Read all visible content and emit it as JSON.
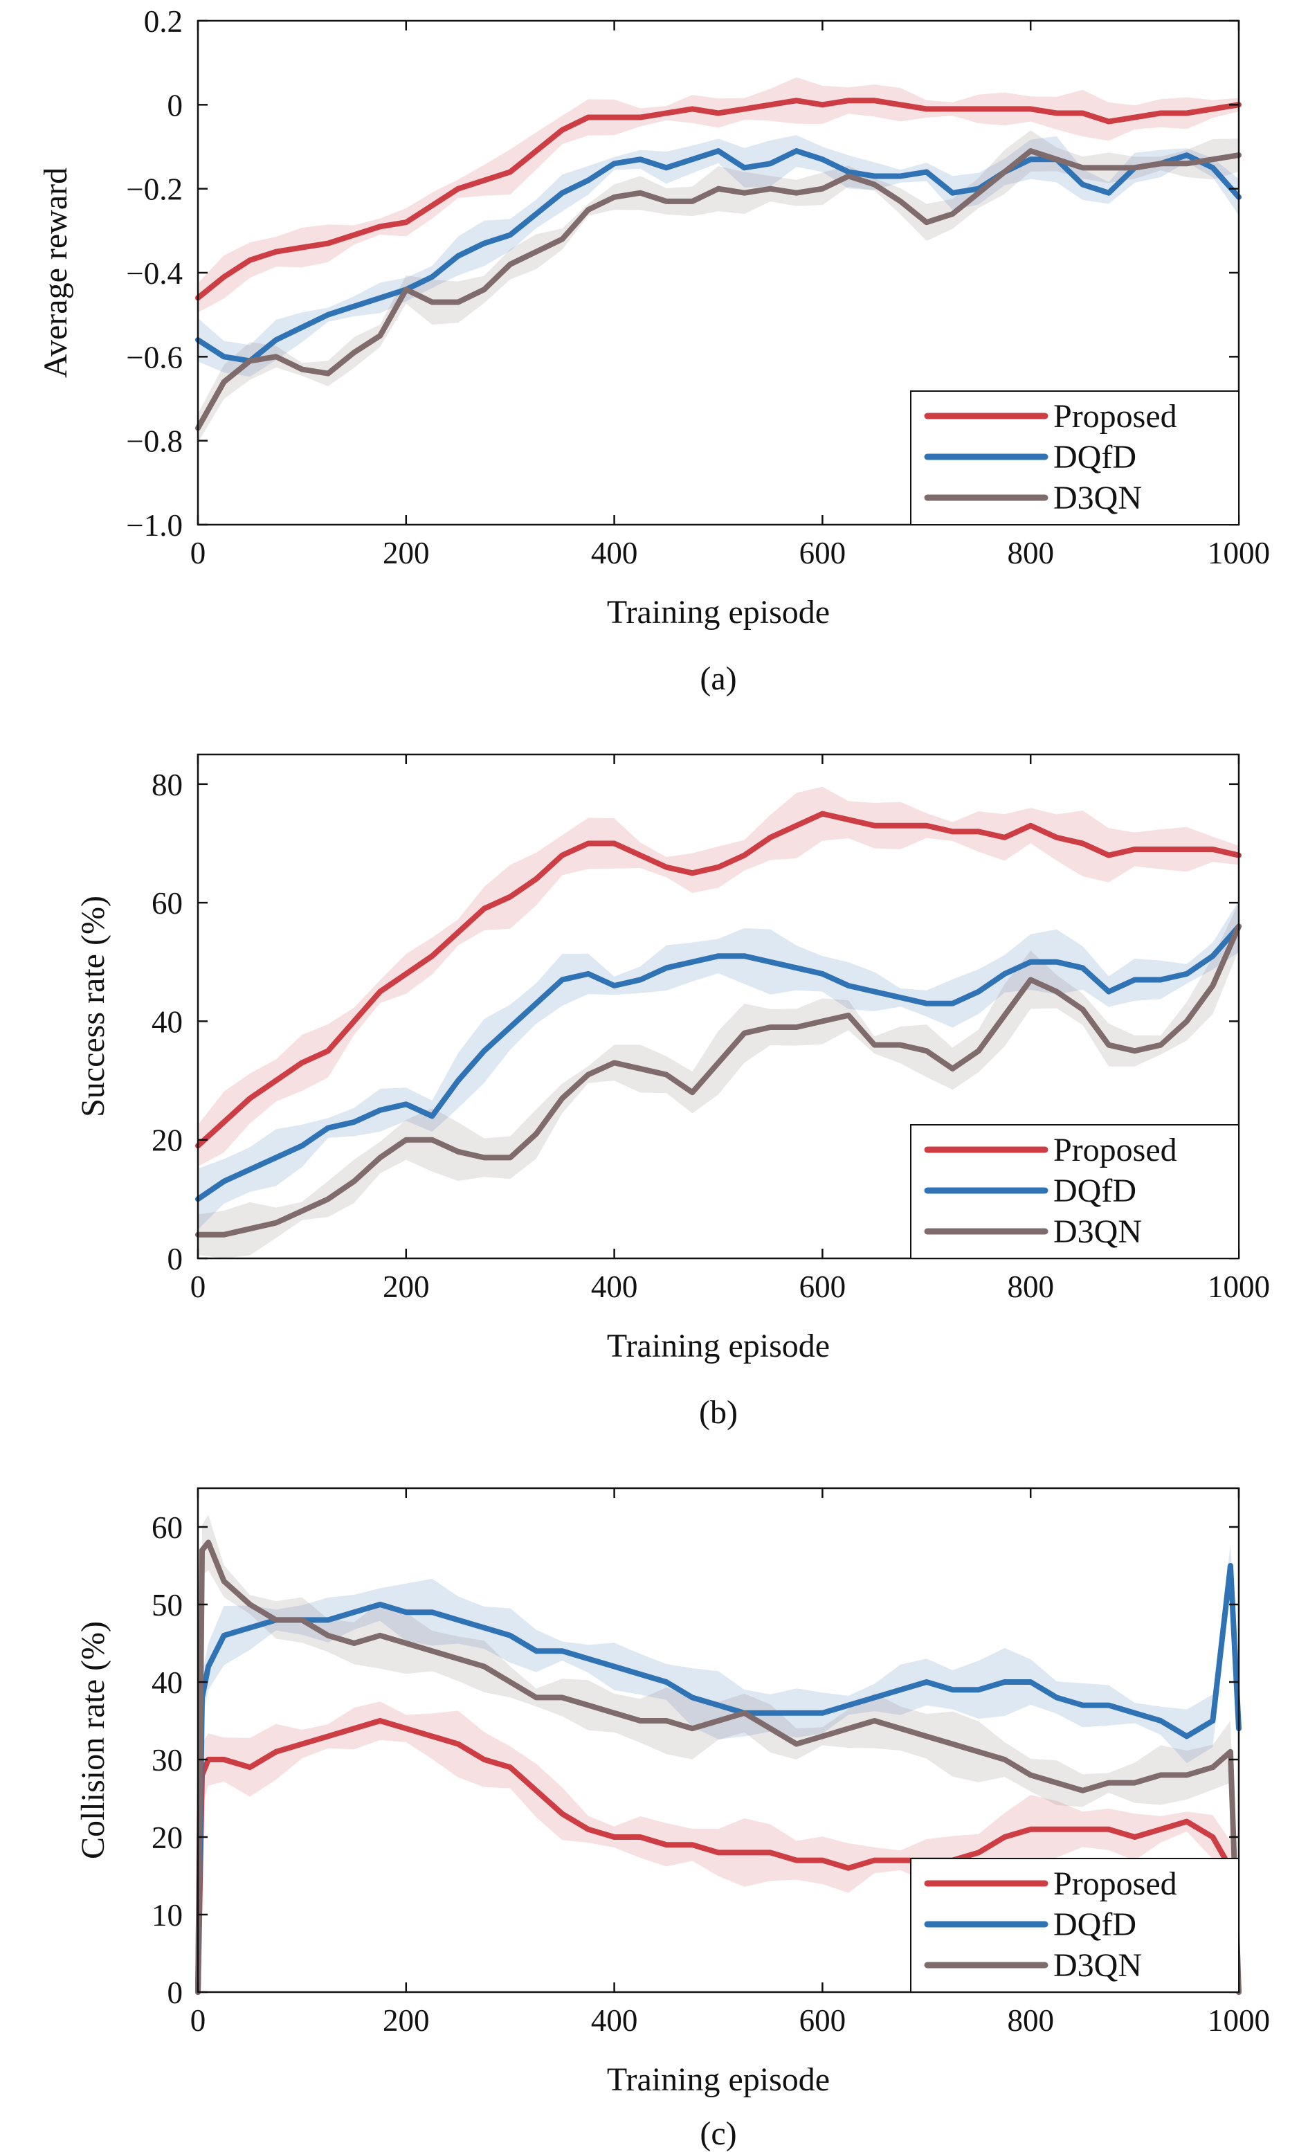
{
  "colors": {
    "proposed": "#cc3d44",
    "dqfd": "#2f73b5",
    "d3qn": "#7f6b6b",
    "axis": "#111111"
  },
  "chart_data": [
    {
      "type": "line",
      "caption": "(a)",
      "xlabel": "Training episode",
      "ylabel": "Average reward",
      "xlim": [
        0,
        1000
      ],
      "ylim": [
        -1.0,
        0.2
      ],
      "xticks": [
        0,
        200,
        400,
        600,
        800,
        1000
      ],
      "xtick_labels": [
        "0",
        "200",
        "400",
        "600",
        "800",
        "1000"
      ],
      "yticks": [
        -1.0,
        -0.8,
        -0.6,
        -0.4,
        -0.2,
        0,
        0.2
      ],
      "ytick_labels": [
        "−1.0",
        "−0.8",
        "−0.6",
        "−0.4",
        "−0.2",
        "0",
        "0.2"
      ],
      "legend": "bottom-right",
      "grid": false,
      "series": [
        {
          "name": "Proposed",
          "color_key": "proposed",
          "x": [
            0,
            25,
            50,
            75,
            100,
            125,
            150,
            175,
            200,
            225,
            250,
            275,
            300,
            325,
            350,
            375,
            400,
            425,
            450,
            475,
            500,
            525,
            550,
            575,
            600,
            625,
            650,
            675,
            700,
            725,
            750,
            775,
            800,
            825,
            850,
            875,
            900,
            925,
            950,
            975,
            1000
          ],
          "y": [
            -0.46,
            -0.41,
            -0.37,
            -0.35,
            -0.34,
            -0.33,
            -0.31,
            -0.29,
            -0.28,
            -0.24,
            -0.2,
            -0.18,
            -0.16,
            -0.11,
            -0.06,
            -0.03,
            -0.03,
            -0.03,
            -0.02,
            -0.01,
            -0.02,
            -0.01,
            0,
            0.01,
            0,
            0.01,
            0.01,
            0,
            -0.01,
            -0.01,
            -0.01,
            -0.01,
            -0.01,
            -0.02,
            -0.02,
            -0.04,
            -0.03,
            -0.02,
            -0.02,
            -0.01,
            0
          ]
        },
        {
          "name": "DQfD",
          "color_key": "dqfd",
          "x": [
            0,
            25,
            50,
            75,
            100,
            125,
            150,
            175,
            200,
            225,
            250,
            275,
            300,
            325,
            350,
            375,
            400,
            425,
            450,
            475,
            500,
            525,
            550,
            575,
            600,
            625,
            650,
            675,
            700,
            725,
            750,
            775,
            800,
            825,
            850,
            875,
            900,
            925,
            950,
            975,
            1000
          ],
          "y": [
            -0.56,
            -0.6,
            -0.61,
            -0.56,
            -0.53,
            -0.5,
            -0.48,
            -0.46,
            -0.44,
            -0.41,
            -0.36,
            -0.33,
            -0.31,
            -0.26,
            -0.21,
            -0.18,
            -0.14,
            -0.13,
            -0.15,
            -0.13,
            -0.11,
            -0.15,
            -0.14,
            -0.11,
            -0.13,
            -0.16,
            -0.17,
            -0.17,
            -0.16,
            -0.21,
            -0.2,
            -0.16,
            -0.13,
            -0.13,
            -0.19,
            -0.21,
            -0.15,
            -0.14,
            -0.12,
            -0.15,
            -0.22
          ]
        },
        {
          "name": "D3QN",
          "color_key": "d3qn",
          "x": [
            0,
            25,
            50,
            75,
            100,
            125,
            150,
            175,
            200,
            225,
            250,
            275,
            300,
            325,
            350,
            375,
            400,
            425,
            450,
            475,
            500,
            525,
            550,
            575,
            600,
            625,
            650,
            675,
            700,
            725,
            750,
            775,
            800,
            825,
            850,
            875,
            900,
            925,
            950,
            975,
            1000
          ],
          "y": [
            -0.77,
            -0.66,
            -0.61,
            -0.6,
            -0.63,
            -0.64,
            -0.59,
            -0.55,
            -0.44,
            -0.47,
            -0.47,
            -0.44,
            -0.38,
            -0.35,
            -0.32,
            -0.25,
            -0.22,
            -0.21,
            -0.23,
            -0.23,
            -0.2,
            -0.21,
            -0.2,
            -0.21,
            -0.2,
            -0.17,
            -0.19,
            -0.23,
            -0.28,
            -0.26,
            -0.21,
            -0.16,
            -0.11,
            -0.13,
            -0.15,
            -0.15,
            -0.15,
            -0.14,
            -0.14,
            -0.13,
            -0.12
          ]
        }
      ]
    },
    {
      "type": "line",
      "caption": "(b)",
      "xlabel": "Training episode",
      "ylabel": "Success rate (%)",
      "xlim": [
        0,
        1000
      ],
      "ylim": [
        0,
        85
      ],
      "xticks": [
        0,
        200,
        400,
        600,
        800,
        1000
      ],
      "xtick_labels": [
        "0",
        "200",
        "400",
        "600",
        "800",
        "1000"
      ],
      "yticks": [
        0,
        20,
        40,
        60,
        80
      ],
      "ytick_labels": [
        "0",
        "20",
        "40",
        "60",
        "80"
      ],
      "legend": "bottom-right",
      "grid": false,
      "series": [
        {
          "name": "Proposed",
          "color_key": "proposed",
          "x": [
            0,
            25,
            50,
            75,
            100,
            125,
            150,
            175,
            200,
            225,
            250,
            275,
            300,
            325,
            350,
            375,
            400,
            425,
            450,
            475,
            500,
            525,
            550,
            575,
            600,
            625,
            650,
            675,
            700,
            725,
            750,
            775,
            800,
            825,
            850,
            875,
            900,
            925,
            950,
            975,
            1000
          ],
          "y": [
            19,
            23,
            27,
            30,
            33,
            35,
            40,
            45,
            48,
            51,
            55,
            59,
            61,
            64,
            68,
            70,
            70,
            68,
            66,
            65,
            66,
            68,
            71,
            73,
            75,
            74,
            73,
            73,
            73,
            72,
            72,
            71,
            73,
            71,
            70,
            68,
            69,
            69,
            69,
            69,
            68
          ]
        },
        {
          "name": "DQfD",
          "color_key": "dqfd",
          "x": [
            0,
            25,
            50,
            75,
            100,
            125,
            150,
            175,
            200,
            225,
            250,
            275,
            300,
            325,
            350,
            375,
            400,
            425,
            450,
            475,
            500,
            525,
            550,
            575,
            600,
            625,
            650,
            675,
            700,
            725,
            750,
            775,
            800,
            825,
            850,
            875,
            900,
            925,
            950,
            975,
            1000
          ],
          "y": [
            10,
            13,
            15,
            17,
            19,
            22,
            23,
            25,
            26,
            24,
            30,
            35,
            39,
            43,
            47,
            48,
            46,
            47,
            49,
            50,
            51,
            51,
            50,
            49,
            48,
            46,
            45,
            44,
            43,
            43,
            45,
            48,
            50,
            50,
            49,
            45,
            47,
            47,
            48,
            51,
            56
          ]
        },
        {
          "name": "D3QN",
          "color_key": "d3qn",
          "x": [
            0,
            25,
            50,
            75,
            100,
            125,
            150,
            175,
            200,
            225,
            250,
            275,
            300,
            325,
            350,
            375,
            400,
            425,
            450,
            475,
            500,
            525,
            550,
            575,
            600,
            625,
            650,
            675,
            700,
            725,
            750,
            775,
            800,
            825,
            850,
            875,
            900,
            925,
            950,
            975,
            1000
          ],
          "y": [
            4,
            4,
            5,
            6,
            8,
            10,
            13,
            17,
            20,
            20,
            18,
            17,
            17,
            21,
            27,
            31,
            33,
            32,
            31,
            28,
            33,
            38,
            39,
            39,
            40,
            41,
            36,
            36,
            35,
            32,
            35,
            41,
            47,
            45,
            42,
            36,
            35,
            36,
            40,
            46,
            56
          ]
        }
      ]
    },
    {
      "type": "line",
      "caption": "(c)",
      "xlabel": "Training episode",
      "ylabel": "Collision rate (%)",
      "xlim": [
        0,
        1000
      ],
      "ylim": [
        0,
        65
      ],
      "xticks": [
        0,
        200,
        400,
        600,
        800,
        1000
      ],
      "xtick_labels": [
        "0",
        "200",
        "400",
        "600",
        "800",
        "1000"
      ],
      "yticks": [
        0,
        10,
        20,
        30,
        40,
        50,
        60
      ],
      "ytick_labels": [
        "0",
        "10",
        "20",
        "30",
        "40",
        "50",
        "60"
      ],
      "legend": "bottom-right",
      "grid": false,
      "series": [
        {
          "name": "Proposed",
          "color_key": "proposed",
          "x": [
            0,
            4,
            10,
            25,
            50,
            75,
            100,
            125,
            150,
            175,
            200,
            225,
            250,
            275,
            300,
            325,
            350,
            375,
            400,
            425,
            450,
            475,
            500,
            525,
            550,
            575,
            600,
            625,
            650,
            675,
            700,
            725,
            750,
            775,
            800,
            825,
            850,
            875,
            900,
            925,
            950,
            975,
            992,
            1000
          ],
          "y": [
            0,
            28,
            30,
            30,
            29,
            31,
            32,
            33,
            34,
            35,
            34,
            33,
            32,
            30,
            29,
            26,
            23,
            21,
            20,
            20,
            19,
            19,
            18,
            18,
            18,
            17,
            17,
            16,
            17,
            17,
            17,
            17,
            18,
            20,
            21,
            21,
            21,
            21,
            20,
            21,
            22,
            20,
            16,
            0
          ]
        },
        {
          "name": "DQfD",
          "color_key": "dqfd",
          "x": [
            0,
            4,
            10,
            25,
            50,
            75,
            100,
            125,
            150,
            175,
            200,
            225,
            250,
            275,
            300,
            325,
            350,
            375,
            400,
            425,
            450,
            475,
            500,
            525,
            550,
            575,
            600,
            625,
            650,
            675,
            700,
            725,
            750,
            775,
            800,
            825,
            850,
            875,
            900,
            925,
            950,
            975,
            992,
            1000
          ],
          "y": [
            0,
            38,
            42,
            46,
            47,
            48,
            48,
            48,
            49,
            50,
            49,
            49,
            48,
            47,
            46,
            44,
            44,
            43,
            42,
            41,
            40,
            38,
            37,
            36,
            36,
            36,
            36,
            37,
            38,
            39,
            40,
            39,
            39,
            40,
            40,
            38,
            37,
            37,
            36,
            35,
            33,
            35,
            55,
            34
          ]
        },
        {
          "name": "D3QN",
          "color_key": "d3qn",
          "x": [
            0,
            4,
            10,
            25,
            50,
            75,
            100,
            125,
            150,
            175,
            200,
            225,
            250,
            275,
            300,
            325,
            350,
            375,
            400,
            425,
            450,
            475,
            500,
            525,
            550,
            575,
            600,
            625,
            650,
            675,
            700,
            725,
            750,
            775,
            800,
            825,
            850,
            875,
            900,
            925,
            950,
            975,
            992,
            1000
          ],
          "y": [
            0,
            57,
            58,
            53,
            50,
            48,
            48,
            46,
            45,
            46,
            45,
            44,
            43,
            42,
            40,
            38,
            38,
            37,
            36,
            35,
            35,
            34,
            35,
            36,
            34,
            32,
            33,
            34,
            35,
            34,
            33,
            32,
            31,
            30,
            28,
            27,
            26,
            27,
            27,
            28,
            28,
            29,
            31,
            0
          ]
        }
      ]
    }
  ]
}
